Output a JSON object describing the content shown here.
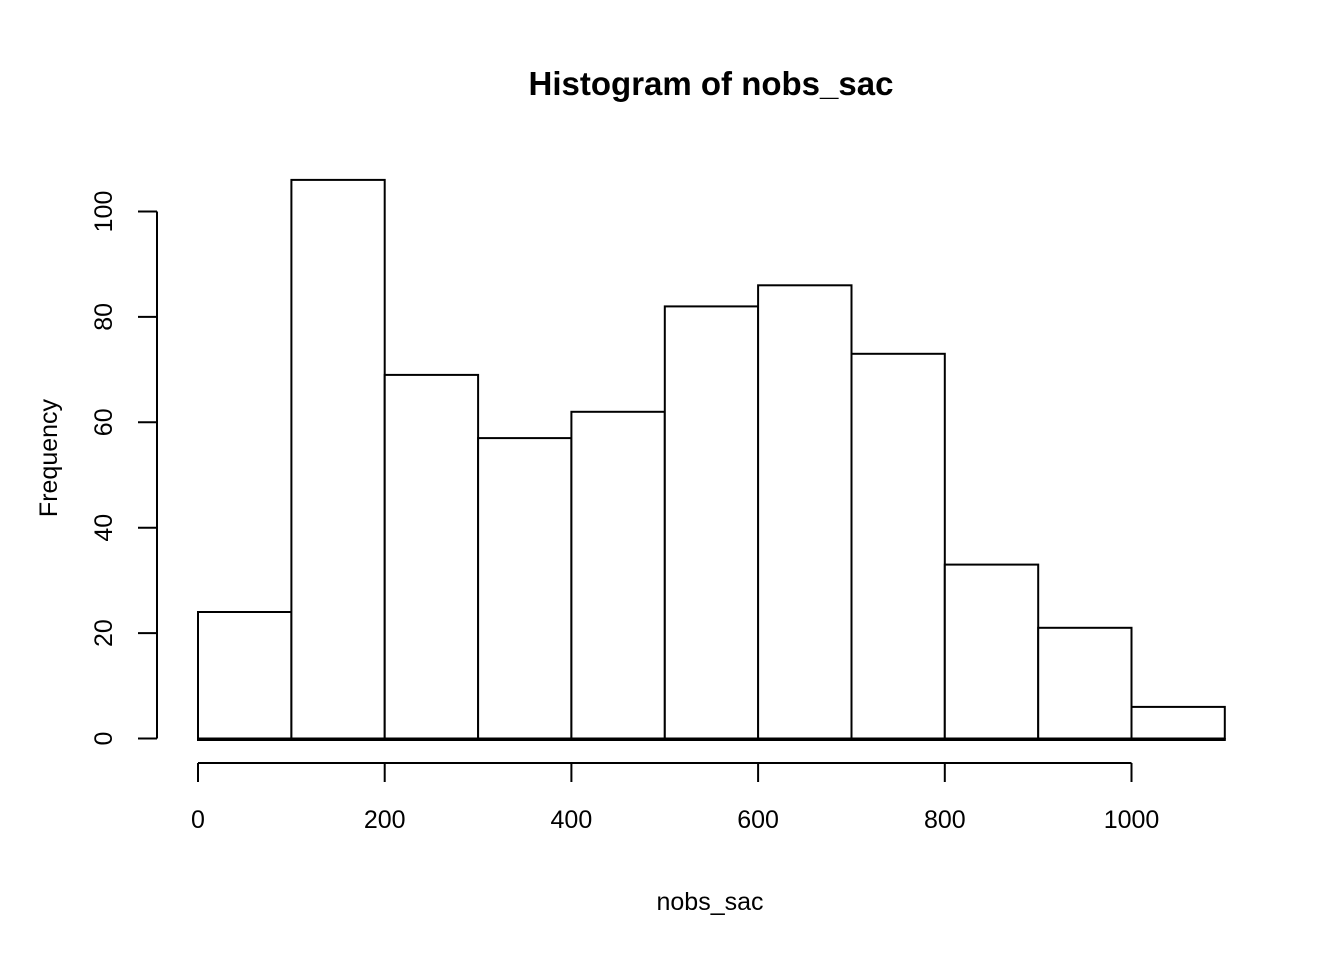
{
  "chart_data": {
    "type": "bar",
    "subtype": "histogram",
    "title": "Histogram of nobs_sac",
    "xlabel": "nobs_sac",
    "ylabel": "Frequency",
    "bin_edges": [
      0,
      100,
      200,
      300,
      400,
      500,
      600,
      700,
      800,
      900,
      1000,
      1100
    ],
    "counts": [
      24,
      106,
      69,
      57,
      62,
      82,
      86,
      73,
      33,
      21,
      6
    ],
    "x_ticks": [
      0,
      200,
      400,
      600,
      800,
      1000
    ],
    "y_ticks": [
      0,
      20,
      40,
      60,
      80,
      100
    ],
    "xlim": [
      0,
      1100
    ],
    "ylim": [
      0,
      106
    ],
    "grid": false,
    "legend": false,
    "colors": {
      "background": "#ffffff",
      "bar_fill": "#ffffff",
      "bar_stroke": "#000000",
      "axis": "#000000",
      "text": "#000000"
    }
  }
}
